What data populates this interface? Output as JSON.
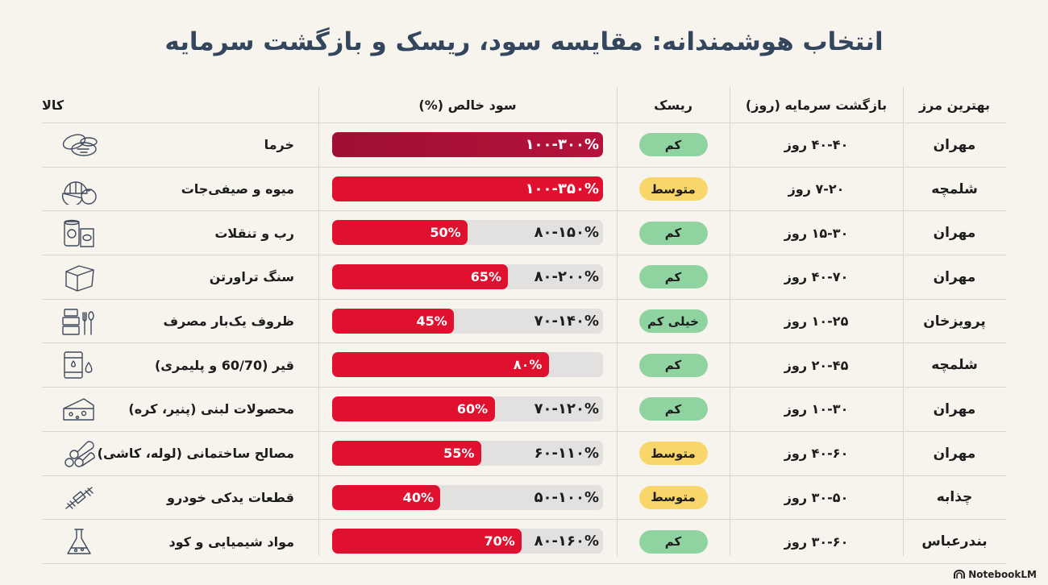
{
  "title": "انتخاب هوشمندانه: مقایسه سود، ریسک و بازگشت سرمایه",
  "headers": {
    "goods": "کالا",
    "profit": "سود خالص (%)",
    "risk": "ریسک",
    "payback": "بازگشت سرمایه (روز)",
    "border": "بهترین مرز"
  },
  "colors": {
    "bar_fill": "#e0102f",
    "bar_fill_top": "#a00f32",
    "bar_track": "#e2e1df",
    "risk_low": "#8fd4a0",
    "risk_medium": "#f8d66a",
    "title": "#34465e"
  },
  "rows": [
    {
      "goods": "خرما",
      "icon": "dates-icon",
      "profit_range": "۱۰۰-۳۰۰%",
      "fill_label": "",
      "fill_fraction": 1.0,
      "risk": "کم",
      "risk_level": "low",
      "payback": "۴۰-۴۰ روز",
      "border": "مهران"
    },
    {
      "goods": "میوه و صیفی‌جات",
      "icon": "fruit-vegetable-icon",
      "profit_range": "۱۰۰-۳۵۰%",
      "fill_label": "",
      "fill_fraction": 1.0,
      "risk": "متوسط",
      "risk_level": "medium",
      "payback": "۷-۲۰ روز",
      "border": "شلمچه"
    },
    {
      "goods": "رب و تنقلات",
      "icon": "canned-snack-icon",
      "profit_range": "۸۰-۱۵۰%",
      "fill_label": "50%",
      "fill_fraction": 0.5,
      "risk": "کم",
      "risk_level": "low",
      "payback": "۱۵-۳۰ روز",
      "border": "مهران"
    },
    {
      "goods": "سنگ تراورتن",
      "icon": "stone-block-icon",
      "profit_range": "۸۰-۲۰۰%",
      "fill_label": "65%",
      "fill_fraction": 0.65,
      "risk": "کم",
      "risk_level": "low",
      "payback": "۴۰-۷۰ روز",
      "border": "مهران"
    },
    {
      "goods": "ظروف یک‌بار مصرف",
      "icon": "disposable-containers-icon",
      "profit_range": "۷۰-۱۴۰%",
      "fill_label": "45%",
      "fill_fraction": 0.45,
      "risk": "خیلی کم",
      "risk_level": "low",
      "payback": "۱۰-۲۵ روز",
      "border": "پرویزخان"
    },
    {
      "goods": "قیر (60/70 و پلیمری)",
      "icon": "oil-barrel-icon",
      "profit_range": "",
      "fill_label": "۸۰%",
      "fill_fraction": 0.8,
      "risk": "کم",
      "risk_level": "low",
      "payback": "۲۰-۴۵ روز",
      "border": "شلمچه"
    },
    {
      "goods": "محصولات لبنی (پنیر، کره)",
      "icon": "cheese-icon",
      "profit_range": "۷۰-۱۲۰%",
      "fill_label": "60%",
      "fill_fraction": 0.6,
      "risk": "کم",
      "risk_level": "low",
      "payback": "۱۰-۳۰ روز",
      "border": "مهران"
    },
    {
      "goods": "مصالح ساختمانی (لوله، کاشی)",
      "icon": "pipes-icon",
      "profit_range": "۶۰-۱۱۰%",
      "fill_label": "55%",
      "fill_fraction": 0.55,
      "risk": "متوسط",
      "risk_level": "medium",
      "payback": "۴۰-۶۰ روز",
      "border": "مهران"
    },
    {
      "goods": "قطعات یدکی خودرو",
      "icon": "car-part-icon",
      "profit_range": "۵۰-۱۰۰%",
      "fill_label": "40%",
      "fill_fraction": 0.4,
      "risk": "متوسط",
      "risk_level": "medium",
      "payback": "۳۰-۵۰ روز",
      "border": "چذابه"
    },
    {
      "goods": "مواد شیمیایی و کود",
      "icon": "flask-icon",
      "profit_range": "۸۰-۱۶۰%",
      "fill_label": "70%",
      "fill_fraction": 0.7,
      "risk": "کم",
      "risk_level": "low",
      "payback": "۳۰-۶۰ روز",
      "border": "بندرعباس"
    }
  ],
  "footer": {
    "brand": "NotebookLM"
  }
}
